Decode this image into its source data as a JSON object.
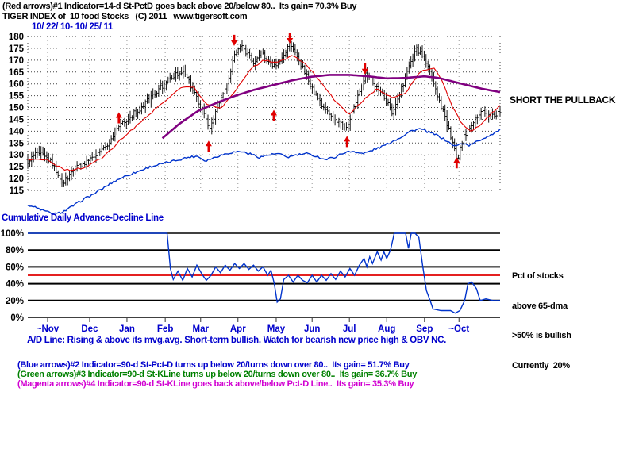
{
  "colors": {
    "red": "#e00000",
    "blue_line": "#0033cc",
    "purple": "#800080",
    "text_blue": "#0000cc",
    "green": "#008000",
    "magenta": "#d100d1",
    "grid": "#444444"
  },
  "header": {
    "line1": "(Red arrows)#1 Indicator=14-d St-PctD goes back above 20/below 80..  Its gain= 70.3% Buy",
    "line2": "TIGER INDEX of  10 food Stocks   (C) 2011   www.tigersoft.com",
    "date_range": "10/ 22/ 10- 10/ 25/ 11"
  },
  "annotations": {
    "short_pullback": "SHORT THE PULLBACK",
    "ad_panel_label": "Cumulative Daily Advance-Decline Line",
    "pct_lines": [
      "Pct of stocks",
      "above 65-dma",
      ">50% is bullish",
      "Currently  20%"
    ],
    "ad_line_note": "A/D Line: Rising & above its mvg.avg. Short-term bullish. Watch for bearish new price high & OBV NC."
  },
  "footer": {
    "blue": "(Blue arrows)#2 Indicator=90-d St-Pct-D turns up below 20/turns down over 80..  Its gain= 51.7% Buy",
    "green": "(Green arrows)#3 Indicator=90-d St-KLine turns up below 20/turns down over 80..  Its gain= 36.7% Buy",
    "magenta": "(Magenta arrows)#4 Indicator=90-d St-KLine goes back above/below Pct-D Line..  Its gain= 35.3% Buy"
  },
  "chart_data": [
    {
      "type": "ohlc_with_lines",
      "title": "TIGER INDEX of 10 food Stocks",
      "date_range": "10/22/10 - 10/25/11",
      "ylim": [
        115,
        180
      ],
      "y_ticks": [
        180,
        175,
        170,
        165,
        160,
        155,
        150,
        145,
        140,
        135,
        130,
        125,
        120,
        115
      ],
      "x_labels": [
        {
          "t": 0.042,
          "label": "~Nov"
        },
        {
          "t": 0.131,
          "label": "Dec"
        },
        {
          "t": 0.21,
          "label": "Jan"
        },
        {
          "t": 0.291,
          "label": "Feb"
        },
        {
          "t": 0.366,
          "label": "Mar"
        },
        {
          "t": 0.445,
          "label": "Apr"
        },
        {
          "t": 0.526,
          "label": "May"
        },
        {
          "t": 0.602,
          "label": "Jun"
        },
        {
          "t": 0.681,
          "label": "Jul"
        },
        {
          "t": 0.76,
          "label": "Aug"
        },
        {
          "t": 0.84,
          "label": "Sep"
        },
        {
          "t": 0.913,
          "label": "~Oct"
        }
      ],
      "series_anchors": {
        "close": [
          [
            0.0,
            127
          ],
          [
            0.015,
            130
          ],
          [
            0.03,
            132
          ],
          [
            0.045,
            128
          ],
          [
            0.06,
            123
          ],
          [
            0.075,
            118
          ],
          [
            0.09,
            122
          ],
          [
            0.105,
            125
          ],
          [
            0.12,
            126
          ],
          [
            0.135,
            128
          ],
          [
            0.155,
            131
          ],
          [
            0.175,
            136
          ],
          [
            0.195,
            143
          ],
          [
            0.215,
            146
          ],
          [
            0.235,
            149
          ],
          [
            0.255,
            153
          ],
          [
            0.275,
            157
          ],
          [
            0.295,
            161
          ],
          [
            0.315,
            164
          ],
          [
            0.33,
            166
          ],
          [
            0.345,
            159
          ],
          [
            0.36,
            153
          ],
          [
            0.375,
            146
          ],
          [
            0.385,
            141
          ],
          [
            0.395,
            147
          ],
          [
            0.41,
            154
          ],
          [
            0.425,
            161
          ],
          [
            0.437,
            172
          ],
          [
            0.45,
            176
          ],
          [
            0.465,
            173
          ],
          [
            0.48,
            169
          ],
          [
            0.495,
            173
          ],
          [
            0.51,
            169
          ],
          [
            0.525,
            167
          ],
          [
            0.54,
            172
          ],
          [
            0.555,
            177
          ],
          [
            0.57,
            171
          ],
          [
            0.585,
            166
          ],
          [
            0.6,
            159
          ],
          [
            0.615,
            153
          ],
          [
            0.635,
            148
          ],
          [
            0.655,
            144
          ],
          [
            0.675,
            141
          ],
          [
            0.69,
            150
          ],
          [
            0.705,
            159
          ],
          [
            0.715,
            164
          ],
          [
            0.73,
            161
          ],
          [
            0.745,
            157
          ],
          [
            0.76,
            152
          ],
          [
            0.772,
            148
          ],
          [
            0.785,
            154
          ],
          [
            0.8,
            163
          ],
          [
            0.812,
            170
          ],
          [
            0.822,
            175
          ],
          [
            0.835,
            172
          ],
          [
            0.848,
            167
          ],
          [
            0.86,
            160
          ],
          [
            0.872,
            152
          ],
          [
            0.885,
            145
          ],
          [
            0.895,
            138
          ],
          [
            0.903,
            132
          ],
          [
            0.91,
            128
          ],
          [
            0.92,
            136
          ],
          [
            0.935,
            142
          ],
          [
            0.95,
            146
          ],
          [
            0.965,
            148
          ],
          [
            0.98,
            146
          ],
          [
            1.0,
            148
          ]
        ],
        "red_ma": [
          [
            0.0,
            128
          ],
          [
            0.04,
            128
          ],
          [
            0.08,
            123.5
          ],
          [
            0.12,
            124.5
          ],
          [
            0.16,
            129
          ],
          [
            0.2,
            137
          ],
          [
            0.24,
            144
          ],
          [
            0.28,
            151
          ],
          [
            0.32,
            158
          ],
          [
            0.35,
            159
          ],
          [
            0.38,
            151
          ],
          [
            0.41,
            150
          ],
          [
            0.44,
            157
          ],
          [
            0.47,
            166
          ],
          [
            0.5,
            170
          ],
          [
            0.53,
            169
          ],
          [
            0.56,
            172
          ],
          [
            0.59,
            168
          ],
          [
            0.62,
            161
          ],
          [
            0.65,
            153
          ],
          [
            0.68,
            147
          ],
          [
            0.71,
            153
          ],
          [
            0.74,
            158
          ],
          [
            0.77,
            154
          ],
          [
            0.8,
            156
          ],
          [
            0.83,
            165
          ],
          [
            0.86,
            167
          ],
          [
            0.88,
            160
          ],
          [
            0.9,
            150
          ],
          [
            0.92,
            143
          ],
          [
            0.94,
            140
          ],
          [
            0.96,
            143
          ],
          [
            0.98,
            147
          ],
          [
            1.0,
            151
          ]
        ],
        "purple_ma": [
          [
            0.285,
            137
          ],
          [
            0.32,
            143
          ],
          [
            0.36,
            148.5
          ],
          [
            0.4,
            152
          ],
          [
            0.44,
            155
          ],
          [
            0.48,
            157.5
          ],
          [
            0.52,
            159.5
          ],
          [
            0.56,
            161.5
          ],
          [
            0.6,
            163
          ],
          [
            0.64,
            163.8
          ],
          [
            0.68,
            163.8
          ],
          [
            0.72,
            163.2
          ],
          [
            0.76,
            162.3
          ],
          [
            0.8,
            162.5
          ],
          [
            0.84,
            163.2
          ],
          [
            0.87,
            162.5
          ],
          [
            0.9,
            161
          ],
          [
            0.93,
            159.5
          ],
          [
            0.96,
            158
          ],
          [
            1.0,
            156.5
          ]
        ],
        "ad_line": [
          [
            0.0,
            109
          ],
          [
            0.02,
            107.5
          ],
          [
            0.04,
            106
          ],
          [
            0.06,
            105
          ],
          [
            0.08,
            106.5
          ],
          [
            0.1,
            109
          ],
          [
            0.12,
            111.5
          ],
          [
            0.14,
            113.5
          ],
          [
            0.16,
            116
          ],
          [
            0.18,
            118.5
          ],
          [
            0.2,
            120.5
          ],
          [
            0.22,
            122
          ],
          [
            0.24,
            123.5
          ],
          [
            0.26,
            125
          ],
          [
            0.28,
            126
          ],
          [
            0.3,
            127
          ],
          [
            0.32,
            128
          ],
          [
            0.34,
            129
          ],
          [
            0.36,
            129.5
          ],
          [
            0.375,
            127.5
          ],
          [
            0.39,
            128.5
          ],
          [
            0.41,
            130
          ],
          [
            0.43,
            131
          ],
          [
            0.45,
            131.5
          ],
          [
            0.47,
            130.5
          ],
          [
            0.49,
            129
          ],
          [
            0.51,
            130
          ],
          [
            0.53,
            130.5
          ],
          [
            0.55,
            129
          ],
          [
            0.57,
            130
          ],
          [
            0.59,
            130.5
          ],
          [
            0.61,
            129.5
          ],
          [
            0.63,
            128
          ],
          [
            0.65,
            129
          ],
          [
            0.67,
            131
          ],
          [
            0.69,
            131.5
          ],
          [
            0.71,
            130.5
          ],
          [
            0.73,
            132
          ],
          [
            0.75,
            133.5
          ],
          [
            0.77,
            135.5
          ],
          [
            0.79,
            137.5
          ],
          [
            0.81,
            140
          ],
          [
            0.83,
            141
          ],
          [
            0.85,
            139.5
          ],
          [
            0.87,
            138
          ],
          [
            0.89,
            135.5
          ],
          [
            0.905,
            133.5
          ],
          [
            0.92,
            135
          ],
          [
            0.935,
            134
          ],
          [
            0.95,
            135.5
          ],
          [
            0.965,
            137
          ],
          [
            0.98,
            138.5
          ],
          [
            1.0,
            140.5
          ]
        ]
      },
      "arrows": [
        {
          "dir": "up",
          "t": 0.193,
          "price": 148
        },
        {
          "dir": "up",
          "t": 0.383,
          "price": 136
        },
        {
          "dir": "up",
          "t": 0.521,
          "price": 149
        },
        {
          "dir": "up",
          "t": 0.676,
          "price": 138
        },
        {
          "dir": "up",
          "t": 0.908,
          "price": 129
        },
        {
          "dir": "down",
          "t": 0.437,
          "price": 176
        },
        {
          "dir": "down",
          "t": 0.555,
          "price": 177
        },
        {
          "dir": "down",
          "t": 0.714,
          "price": 164
        }
      ]
    },
    {
      "type": "line",
      "title": "Pct of stocks above 65-dma",
      "ylim": [
        0,
        100
      ],
      "y_ticks": [
        100,
        80,
        60,
        40,
        20,
        0
      ],
      "signal_level": 50,
      "current_value": 20,
      "anchors": [
        [
          0.0,
          100
        ],
        [
          0.29,
          100
        ],
        [
          0.295,
          100
        ],
        [
          0.302,
          58
        ],
        [
          0.308,
          45
        ],
        [
          0.318,
          55
        ],
        [
          0.328,
          44
        ],
        [
          0.338,
          58
        ],
        [
          0.348,
          48
        ],
        [
          0.358,
          62
        ],
        [
          0.368,
          52
        ],
        [
          0.378,
          44
        ],
        [
          0.388,
          50
        ],
        [
          0.398,
          60
        ],
        [
          0.408,
          53
        ],
        [
          0.418,
          62
        ],
        [
          0.428,
          56
        ],
        [
          0.438,
          64
        ],
        [
          0.448,
          58
        ],
        [
          0.458,
          64
        ],
        [
          0.468,
          57
        ],
        [
          0.478,
          62
        ],
        [
          0.488,
          55
        ],
        [
          0.498,
          60
        ],
        [
          0.508,
          50
        ],
        [
          0.515,
          56
        ],
        [
          0.522,
          40
        ],
        [
          0.528,
          18
        ],
        [
          0.535,
          22
        ],
        [
          0.542,
          45
        ],
        [
          0.552,
          50
        ],
        [
          0.562,
          42
        ],
        [
          0.572,
          50
        ],
        [
          0.582,
          44
        ],
        [
          0.592,
          41
        ],
        [
          0.602,
          50
        ],
        [
          0.612,
          42
        ],
        [
          0.622,
          50
        ],
        [
          0.632,
          44
        ],
        [
          0.642,
          52
        ],
        [
          0.652,
          45
        ],
        [
          0.662,
          55
        ],
        [
          0.672,
          48
        ],
        [
          0.682,
          58
        ],
        [
          0.692,
          50
        ],
        [
          0.702,
          62
        ],
        [
          0.712,
          70
        ],
        [
          0.718,
          60
        ],
        [
          0.724,
          72
        ],
        [
          0.73,
          64
        ],
        [
          0.74,
          78
        ],
        [
          0.748,
          68
        ],
        [
          0.754,
          78
        ],
        [
          0.76,
          70
        ],
        [
          0.768,
          80
        ],
        [
          0.776,
          100
        ],
        [
          0.8,
          100
        ],
        [
          0.806,
          82
        ],
        [
          0.812,
          100
        ],
        [
          0.82,
          100
        ],
        [
          0.828,
          95
        ],
        [
          0.836,
          62
        ],
        [
          0.844,
          32
        ],
        [
          0.852,
          20
        ],
        [
          0.858,
          10
        ],
        [
          0.875,
          8
        ],
        [
          0.895,
          8
        ],
        [
          0.905,
          5
        ],
        [
          0.915,
          8
        ],
        [
          0.925,
          20
        ],
        [
          0.932,
          40
        ],
        [
          0.94,
          42
        ],
        [
          0.95,
          34
        ],
        [
          0.958,
          20
        ],
        [
          0.97,
          22
        ],
        [
          0.985,
          20
        ],
        [
          1.0,
          20
        ]
      ]
    }
  ]
}
